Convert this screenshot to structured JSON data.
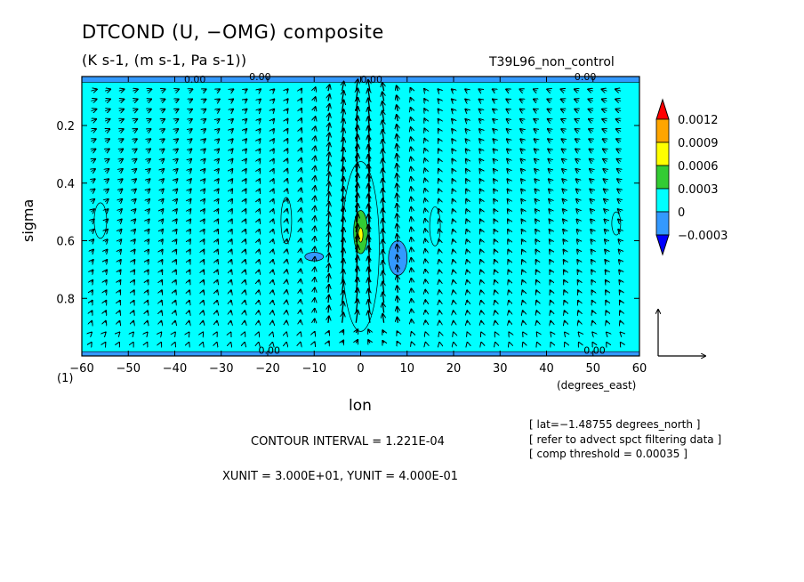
{
  "chart_data": {
    "type": "heatmap",
    "title": "DTCOND (U, −OMG) composite",
    "subtitle": "(K s-1, (m s-1, Pa s-1))",
    "run_name": "T39L96_non_control",
    "xlabel": "lon",
    "xunits": "(degrees_east)",
    "ylabel": "sigma",
    "panel_number": "(1)",
    "xlim": [
      -60,
      60
    ],
    "ylim": [
      1.0,
      0.03
    ],
    "y_axis_inverted": true,
    "x_ticks": [
      -60,
      -50,
      -40,
      -30,
      -20,
      -10,
      0,
      10,
      20,
      30,
      40,
      50,
      60
    ],
    "x_tick_labels": [
      "−60",
      "−50",
      "−40",
      "−30",
      "−20",
      "−10",
      "0",
      "10",
      "20",
      "30",
      "40",
      "50",
      "60"
    ],
    "y_ticks": [
      0.2,
      0.4,
      0.6,
      0.8
    ],
    "y_tick_labels": [
      "0.2",
      "0.4",
      "0.6",
      "0.8"
    ],
    "colorbar": {
      "levels": [
        0.0012,
        0.0009,
        0.0006,
        0.0003,
        0,
        -0.0003
      ],
      "labels": [
        "0.0012",
        "0.0009",
        "0.0006",
        "0.0003",
        "0",
        "−0.0003"
      ],
      "colors": [
        "#ff0000",
        "#ffa500",
        "#ffff00",
        "#33cc33",
        "#00ffff",
        "#3399ff",
        "#0000ff"
      ],
      "extend": "both"
    },
    "background_color": "#00ffff",
    "contour_labels": [
      {
        "lon": -38,
        "sigma": 0.04,
        "text": "0.00"
      },
      {
        "lon": -24,
        "sigma": 0.03,
        "text": "0.00"
      },
      {
        "lon": 0,
        "sigma": 0.04,
        "text": "0.00"
      },
      {
        "lon": 46,
        "sigma": 0.03,
        "text": "0.00"
      },
      {
        "lon": -22,
        "sigma": 0.98,
        "text": "0.00"
      },
      {
        "lon": 48,
        "sigma": 0.98,
        "text": "0.00"
      }
    ],
    "filled_regions": [
      {
        "level": "0.0003",
        "lon_range": [
          -4,
          4
        ],
        "sigma_range": [
          0.34,
          0.93
        ],
        "center_lon": 0,
        "center_sigma": 0.62
      },
      {
        "level": "0.0006",
        "lon_range": [
          -1.5,
          1.5
        ],
        "sigma_range": [
          0.5,
          0.65
        ],
        "center_lon": 0,
        "center_sigma": 0.57
      },
      {
        "level": "0.0009",
        "lon_range": [
          -0.5,
          0.5
        ],
        "sigma_range": [
          0.55,
          0.6
        ],
        "center_lon": 0,
        "center_sigma": 0.58
      },
      {
        "level": "-0.0003",
        "lon_range": [
          6,
          10
        ],
        "sigma_range": [
          0.6,
          0.72
        ],
        "center_lon": 8,
        "center_sigma": 0.66
      },
      {
        "level": "-0.0003",
        "lon_range": [
          -12,
          -8
        ],
        "sigma_range": [
          0.64,
          0.67
        ],
        "center_lon": -10,
        "center_sigma": 0.655
      },
      {
        "level": "-0.0003",
        "lon_range": [
          -60,
          60
        ],
        "sigma_range": [
          0.03,
          0.05
        ],
        "center_lon": 0,
        "center_sigma": 0.04
      },
      {
        "level": "-0.0003",
        "lon_range": [
          -60,
          60
        ],
        "sigma_range": [
          0.985,
          1.0
        ],
        "center_lon": 0,
        "center_sigma": 0.99
      }
    ],
    "vector_field": {
      "description": "wind vectors (U, -OMG), strong convergence and ascent near lon 0, weak elsewhere",
      "reference_vector": {
        "xunit": "3.000E+01",
        "yunit": "4.000E-01"
      }
    }
  },
  "annotations": {
    "contour_interval": "CONTOUR INTERVAL = 1.221E-04",
    "units_line": "XUNIT = 3.000E+01, YUNIT = 4.000E-01",
    "info_lines": [
      "[ lat=−1.48755 degrees_north ]",
      "[ refer to advect spct filtering data ]",
      "[ comp threshold = 0.00035 ]"
    ]
  }
}
